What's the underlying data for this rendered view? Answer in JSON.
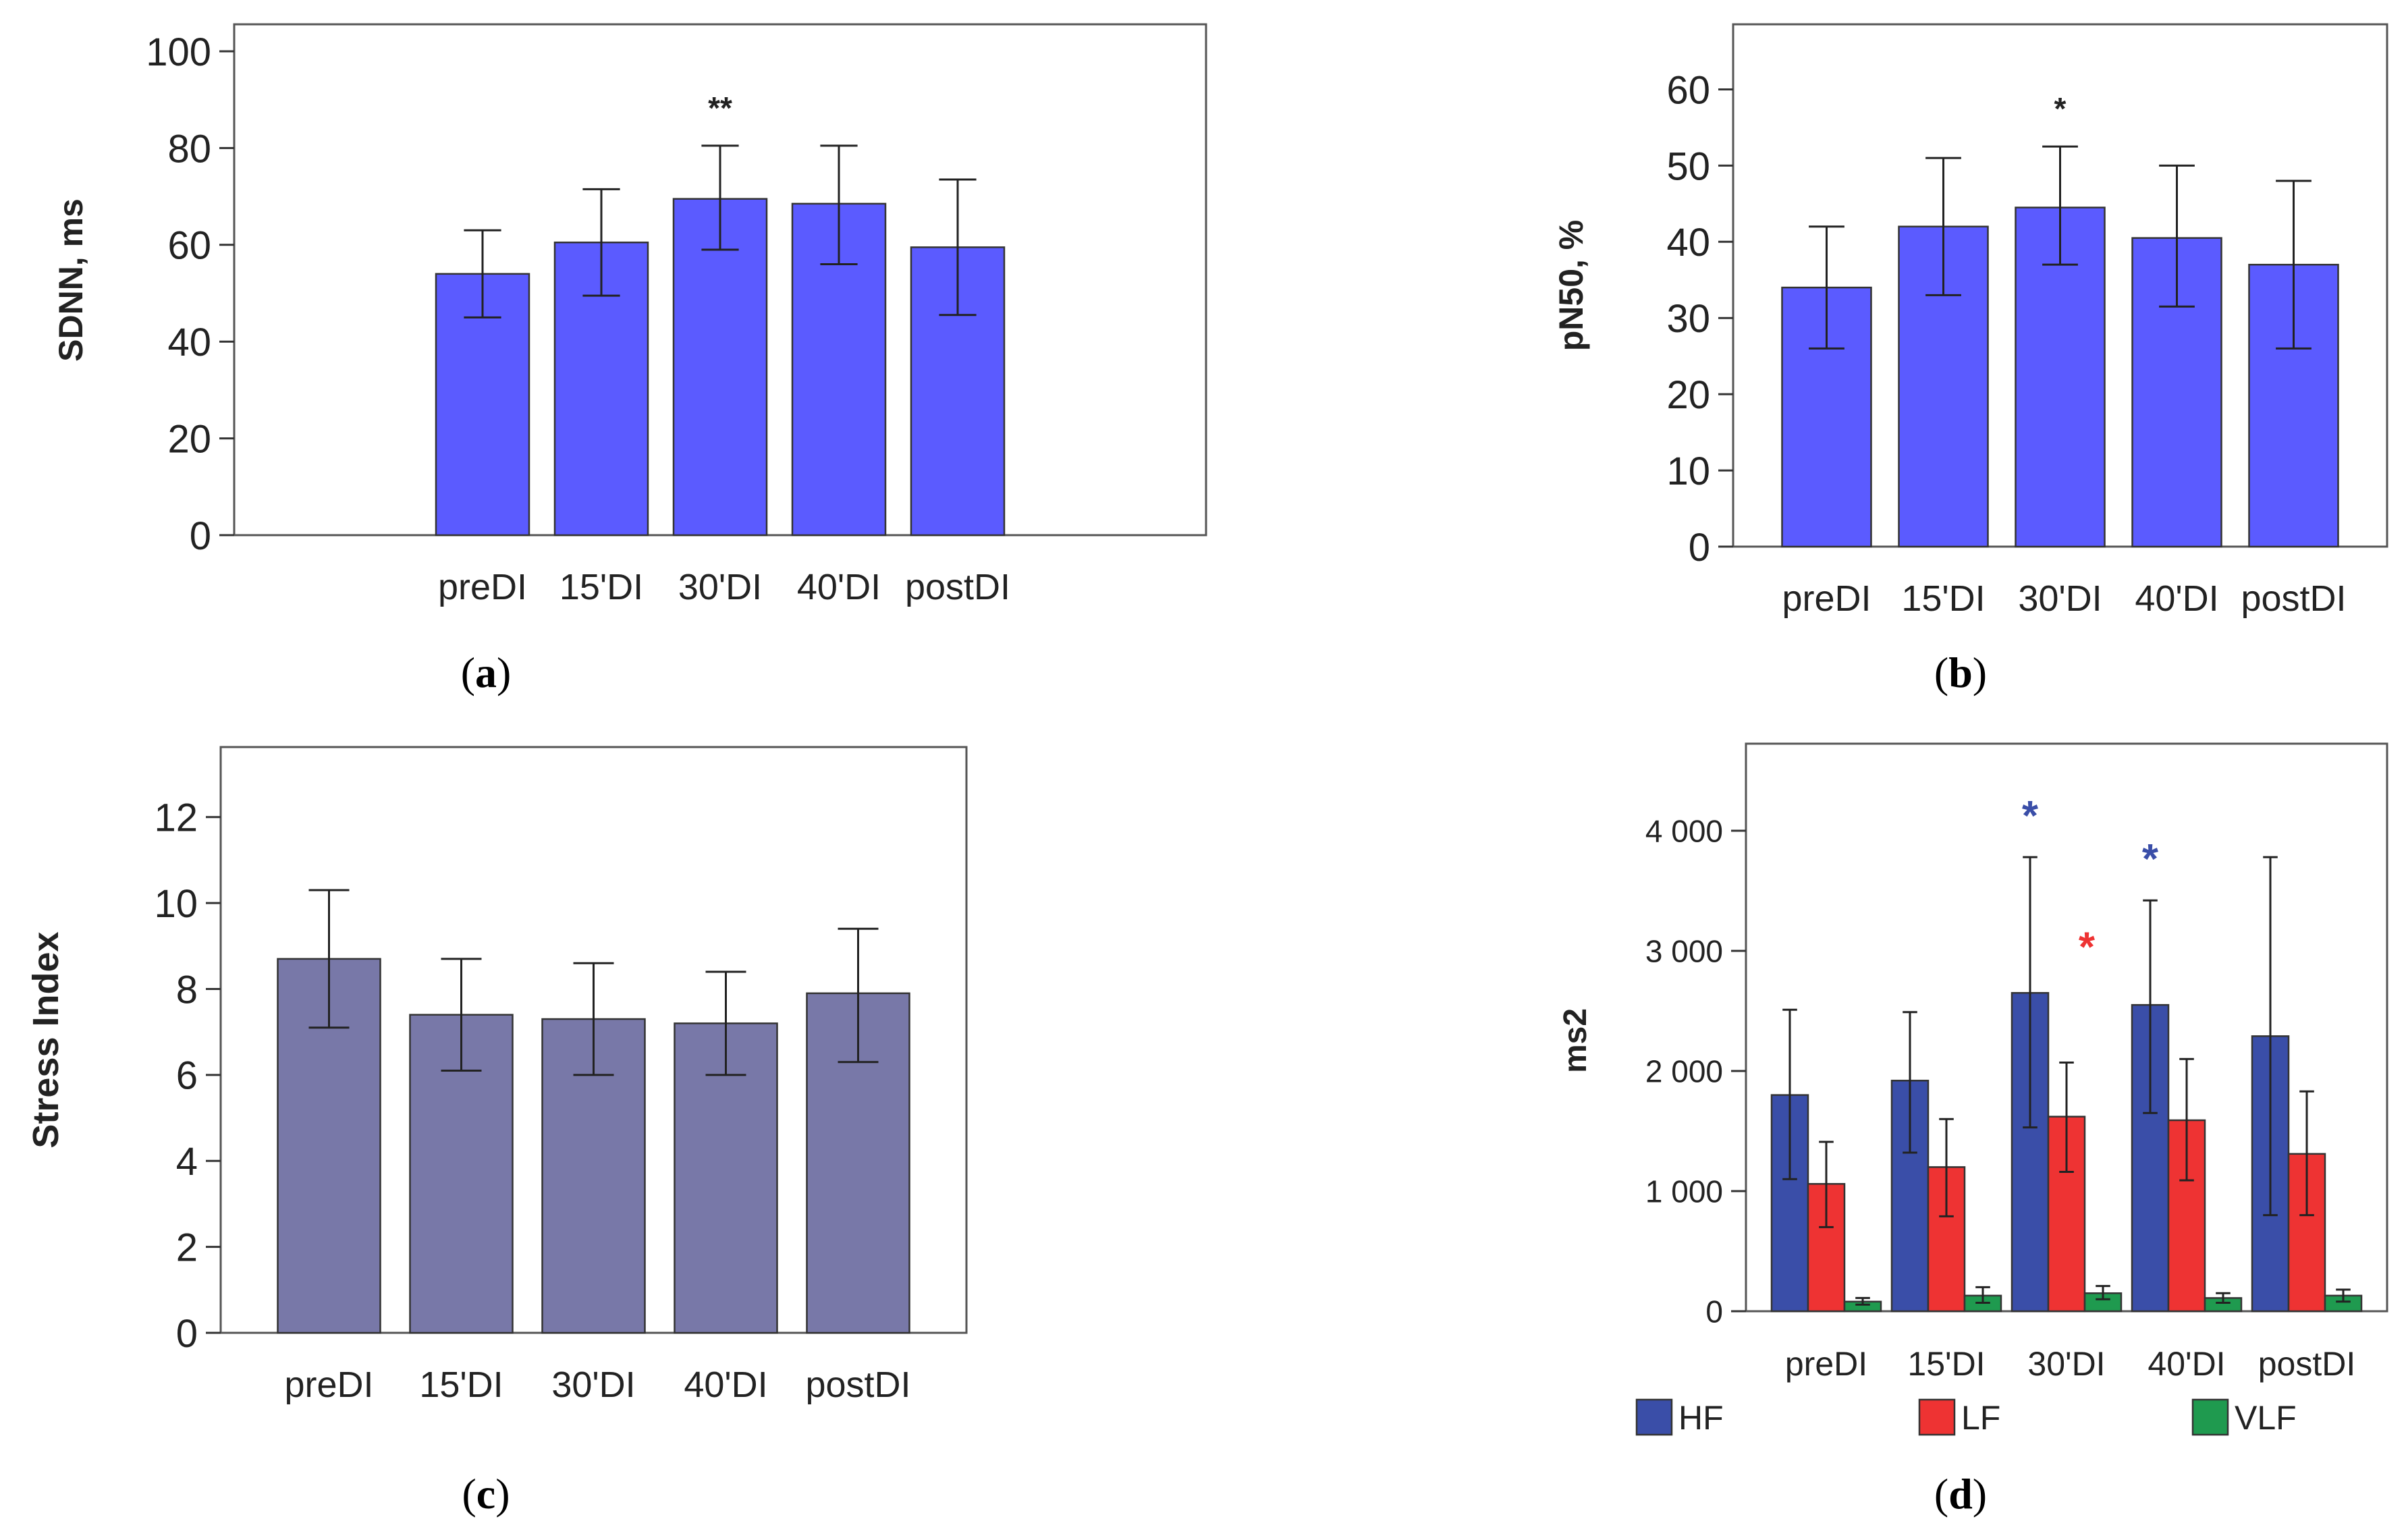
{
  "chart_data": [
    {
      "panel": "a",
      "type": "bar",
      "ylabel": "SDNN, ms",
      "ylim": [
        0,
        100
      ],
      "yticks": [
        0,
        20,
        40,
        60,
        80,
        100
      ],
      "categories": [
        "preDI",
        "15'DI",
        "30'DI",
        "40'DI",
        "postDI"
      ],
      "series": [
        {
          "name": "",
          "color": "#5b5bff",
          "values": [
            54,
            60.5,
            69.5,
            68.5,
            59.5
          ],
          "error_low": [
            45,
            49.5,
            59,
            56,
            45.5
          ],
          "error_high": [
            63,
            71.5,
            80.5,
            80.5,
            73.5
          ],
          "annotations": [
            "",
            "",
            "**",
            "",
            ""
          ],
          "annotation_color": "#222222"
        }
      ],
      "grid": false,
      "caption": "a"
    },
    {
      "panel": "b",
      "type": "bar",
      "ylabel": "pN50, %",
      "ylim": [
        0,
        65
      ],
      "yticks": [
        0,
        10,
        20,
        30,
        40,
        50,
        60
      ],
      "categories": [
        "preDI",
        "15'DI",
        "30'DI",
        "40'DI",
        "postDI"
      ],
      "series": [
        {
          "name": "",
          "color": "#5b5bff",
          "values": [
            34,
            42,
            44.5,
            40.5,
            37
          ],
          "error_low": [
            26,
            33,
            37,
            31.5,
            26
          ],
          "error_high": [
            42,
            51,
            52.5,
            50,
            48
          ],
          "annotations": [
            "",
            "",
            "*",
            "",
            ""
          ],
          "annotation_color": "#222222"
        }
      ],
      "grid": false,
      "caption": "b"
    },
    {
      "panel": "c",
      "type": "bar",
      "ylabel": "Stress Index",
      "ylim": [
        0,
        13
      ],
      "yticks": [
        0,
        2,
        4,
        6,
        8,
        10,
        12
      ],
      "categories": [
        "preDI",
        "15'DI",
        "30'DI",
        "40'DI",
        "postDI"
      ],
      "series": [
        {
          "name": "",
          "color": "#7878a8",
          "values": [
            8.7,
            7.4,
            7.3,
            7.2,
            7.9
          ],
          "error_low": [
            7.1,
            6.1,
            6.0,
            6.0,
            6.3
          ],
          "error_high": [
            10.3,
            8.7,
            8.6,
            8.4,
            9.4
          ],
          "annotations": [
            "",
            "",
            "",
            "",
            ""
          ],
          "annotation_color": "#222222"
        }
      ],
      "grid": false,
      "caption": "c"
    },
    {
      "panel": "d",
      "type": "bar",
      "ylabel": "ms2",
      "ylim": [
        0,
        4500
      ],
      "yticks": [
        0,
        1000,
        2000,
        3000,
        4000
      ],
      "ytick_labels": [
        "0",
        "1 000",
        "2 000",
        "3 000",
        "4 000"
      ],
      "categories": [
        "preDI",
        "15'DI",
        "30'DI",
        "40'DI",
        "postDI"
      ],
      "series": [
        {
          "name": "HF",
          "color": "#3a4ea8",
          "values": [
            1800,
            1920,
            2650,
            2550,
            2290
          ],
          "error_low": [
            1100,
            1320,
            1530,
            1650,
            800
          ],
          "error_high": [
            2510,
            2490,
            3780,
            3420,
            3780
          ],
          "annotations": [
            "",
            "",
            "*",
            "*",
            ""
          ],
          "annotation_color": "#3a4ea8"
        },
        {
          "name": "LF",
          "color": "#ee3333",
          "values": [
            1060,
            1200,
            1620,
            1590,
            1310
          ],
          "error_low": [
            700,
            790,
            1160,
            1090,
            800
          ],
          "error_high": [
            1410,
            1600,
            2070,
            2100,
            1830
          ],
          "annotations": [
            "",
            "",
            "*",
            "",
            ""
          ],
          "annotation_color": "#ee3333"
        },
        {
          "name": "VLF",
          "color": "#1f9a4f",
          "values": [
            80,
            130,
            150,
            110,
            130
          ],
          "error_low": [
            55,
            70,
            100,
            70,
            80
          ],
          "error_high": [
            110,
            200,
            210,
            150,
            180
          ],
          "annotations": [
            "",
            "",
            "",
            "",
            ""
          ],
          "annotation_color": "#1f9a4f"
        }
      ],
      "legend": "bottom",
      "grid": false,
      "caption": "d"
    }
  ]
}
